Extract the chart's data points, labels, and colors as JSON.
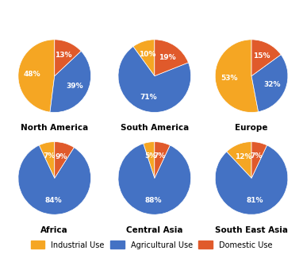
{
  "charts": [
    {
      "title": "North America",
      "values": [
        48,
        39,
        13
      ],
      "labels": [
        "48%",
        "39%",
        "13%"
      ],
      "colors": [
        "#F5A623",
        "#4472C4",
        "#E05A2B"
      ],
      "startangle": 90
    },
    {
      "title": "South America",
      "values": [
        10,
        71,
        19
      ],
      "labels": [
        "10%",
        "71%",
        "19%"
      ],
      "colors": [
        "#F5A623",
        "#4472C4",
        "#E05A2B"
      ],
      "startangle": 90
    },
    {
      "title": "Europe",
      "values": [
        53,
        32,
        15
      ],
      "labels": [
        "53%",
        "32%",
        "15%"
      ],
      "colors": [
        "#F5A623",
        "#4472C4",
        "#E05A2B"
      ],
      "startangle": 90
    },
    {
      "title": "Africa",
      "values": [
        7,
        84,
        9
      ],
      "labels": [
        "7%",
        "84%",
        "9%"
      ],
      "colors": [
        "#F5A623",
        "#4472C4",
        "#E05A2B"
      ],
      "startangle": 90
    },
    {
      "title": "Central Asia",
      "values": [
        5,
        88,
        7
      ],
      "labels": [
        "5%",
        "88%",
        "7%"
      ],
      "colors": [
        "#F5A623",
        "#4472C4",
        "#E05A2B"
      ],
      "startangle": 90
    },
    {
      "title": "South East Asia",
      "values": [
        12,
        81,
        7
      ],
      "labels": [
        "12%",
        "81%",
        "7%"
      ],
      "colors": [
        "#F5A623",
        "#4472C4",
        "#E05A2B"
      ],
      "startangle": 90
    }
  ],
  "legend_labels": [
    "Industrial Use",
    "Agricultural Use",
    "Domestic Use"
  ],
  "legend_colors": [
    "#F5A623",
    "#4472C4",
    "#E05A2B"
  ],
  "text_color": "#FFFFFF",
  "title_color": "#000000",
  "title_fontsize": 7.5,
  "label_fontsize": 6.5,
  "background_color": "#FFFFFF"
}
